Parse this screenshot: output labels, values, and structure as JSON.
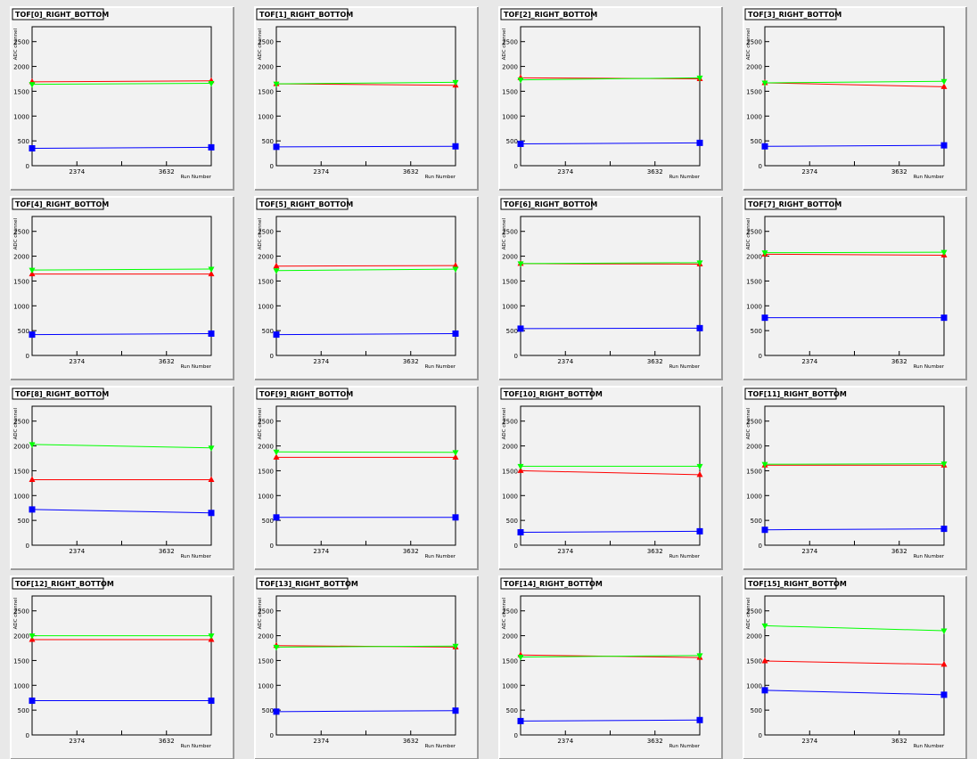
{
  "style": {
    "page_bg": "#e8e8e8",
    "pad_bg": "#f2f2f2",
    "frame_color": "#000000",
    "series_colors": {
      "blue": "#0000ff",
      "red": "#ff0000",
      "green": "#00ff00"
    }
  },
  "chart_data": [
    {
      "type": "line",
      "title": "TOF[0]_RIGHT_BOTTOM",
      "ylabel": "ADC channel",
      "xlabel": "Run Number",
      "x_tick_labels": [
        "2374",
        "3632"
      ],
      "ylim": [
        0,
        2800
      ],
      "y_tick_labels": [
        "0",
        "500",
        "1000",
        "1500",
        "2000",
        "2500"
      ],
      "series": [
        {
          "color": "blue",
          "marker": "square",
          "values": [
            350,
            370
          ]
        },
        {
          "color": "red",
          "marker": "triangle-up",
          "values": [
            1690,
            1710
          ]
        },
        {
          "color": "green",
          "marker": "triangle-down",
          "values": [
            1640,
            1660
          ]
        }
      ]
    },
    {
      "type": "line",
      "title": "TOF[1]_RIGHT_BOTTOM",
      "ylabel": "ADC channel",
      "xlabel": "Run Number",
      "x_tick_labels": [
        "2374",
        "3632"
      ],
      "ylim": [
        0,
        2800
      ],
      "y_tick_labels": [
        "0",
        "500",
        "1000",
        "1500",
        "2000",
        "2500"
      ],
      "series": [
        {
          "color": "blue",
          "marker": "square",
          "values": [
            380,
            390
          ]
        },
        {
          "color": "red",
          "marker": "triangle-up",
          "values": [
            1650,
            1620
          ]
        },
        {
          "color": "green",
          "marker": "triangle-down",
          "values": [
            1650,
            1680
          ]
        }
      ]
    },
    {
      "type": "line",
      "title": "TOF[2]_RIGHT_BOTTOM",
      "ylabel": "ADC channel",
      "xlabel": "Run Number",
      "x_tick_labels": [
        "2374",
        "3632"
      ],
      "ylim": [
        0,
        2800
      ],
      "y_tick_labels": [
        "0",
        "500",
        "1000",
        "1500",
        "2000",
        "2500"
      ],
      "series": [
        {
          "color": "blue",
          "marker": "square",
          "values": [
            440,
            460
          ]
        },
        {
          "color": "red",
          "marker": "triangle-up",
          "values": [
            1770,
            1750
          ]
        },
        {
          "color": "green",
          "marker": "triangle-down",
          "values": [
            1730,
            1770
          ]
        }
      ]
    },
    {
      "type": "line",
      "title": "TOF[3]_RIGHT_BOTTOM",
      "ylabel": "ADC channel",
      "xlabel": "Run Number",
      "x_tick_labels": [
        "2374",
        "3632"
      ],
      "ylim": [
        0,
        2800
      ],
      "y_tick_labels": [
        "0",
        "500",
        "1000",
        "1500",
        "2000",
        "2500"
      ],
      "series": [
        {
          "color": "blue",
          "marker": "square",
          "values": [
            390,
            410
          ]
        },
        {
          "color": "red",
          "marker": "triangle-up",
          "values": [
            1670,
            1590
          ]
        },
        {
          "color": "green",
          "marker": "triangle-down",
          "values": [
            1670,
            1700
          ]
        }
      ]
    },
    {
      "type": "line",
      "title": "TOF[4]_RIGHT_BOTTOM",
      "ylabel": "ADC channel",
      "xlabel": "Run Number",
      "x_tick_labels": [
        "2374",
        "3632"
      ],
      "ylim": [
        0,
        2800
      ],
      "y_tick_labels": [
        "0",
        "500",
        "1000",
        "1500",
        "2000",
        "2500"
      ],
      "series": [
        {
          "color": "blue",
          "marker": "square",
          "values": [
            420,
            440
          ]
        },
        {
          "color": "red",
          "marker": "triangle-up",
          "values": [
            1640,
            1640
          ]
        },
        {
          "color": "green",
          "marker": "triangle-down",
          "values": [
            1720,
            1740
          ]
        }
      ]
    },
    {
      "type": "line",
      "title": "TOF[5]_RIGHT_BOTTOM",
      "ylabel": "ADC channel",
      "xlabel": "Run Number",
      "x_tick_labels": [
        "2374",
        "3632"
      ],
      "ylim": [
        0,
        2800
      ],
      "y_tick_labels": [
        "0",
        "500",
        "1000",
        "1500",
        "2000",
        "2500"
      ],
      "series": [
        {
          "color": "blue",
          "marker": "square",
          "values": [
            420,
            440
          ]
        },
        {
          "color": "red",
          "marker": "triangle-up",
          "values": [
            1800,
            1810
          ]
        },
        {
          "color": "green",
          "marker": "triangle-down",
          "values": [
            1710,
            1740
          ]
        }
      ]
    },
    {
      "type": "line",
      "title": "TOF[6]_RIGHT_BOTTOM",
      "ylabel": "ADC channel",
      "xlabel": "Run Number",
      "x_tick_labels": [
        "2374",
        "3632"
      ],
      "ylim": [
        0,
        2800
      ],
      "y_tick_labels": [
        "0",
        "500",
        "1000",
        "1500",
        "2000",
        "2500"
      ],
      "series": [
        {
          "color": "blue",
          "marker": "square",
          "values": [
            540,
            550
          ]
        },
        {
          "color": "red",
          "marker": "triangle-up",
          "values": [
            1850,
            1840
          ]
        },
        {
          "color": "green",
          "marker": "triangle-down",
          "values": [
            1850,
            1870
          ]
        }
      ]
    },
    {
      "type": "line",
      "title": "TOF[7]_RIGHT_BOTTOM",
      "ylabel": "ADC channel",
      "xlabel": "Run Number",
      "x_tick_labels": [
        "2374",
        "3632"
      ],
      "ylim": [
        0,
        2800
      ],
      "y_tick_labels": [
        "0",
        "500",
        "1000",
        "1500",
        "2000",
        "2500"
      ],
      "series": [
        {
          "color": "blue",
          "marker": "square",
          "values": [
            760,
            760
          ]
        },
        {
          "color": "red",
          "marker": "triangle-up",
          "values": [
            2040,
            2020
          ]
        },
        {
          "color": "green",
          "marker": "triangle-down",
          "values": [
            2070,
            2080
          ]
        }
      ]
    },
    {
      "type": "line",
      "title": "TOF[8]_RIGHT_BOTTOM",
      "ylabel": "ADC channel",
      "xlabel": "Run Number",
      "x_tick_labels": [
        "2374",
        "3632"
      ],
      "ylim": [
        0,
        2800
      ],
      "y_tick_labels": [
        "0",
        "500",
        "1000",
        "1500",
        "2000",
        "2500"
      ],
      "series": [
        {
          "color": "blue",
          "marker": "square",
          "values": [
            720,
            650
          ]
        },
        {
          "color": "red",
          "marker": "triangle-up",
          "values": [
            1320,
            1320
          ]
        },
        {
          "color": "green",
          "marker": "triangle-down",
          "values": [
            2030,
            1960
          ]
        }
      ]
    },
    {
      "type": "line",
      "title": "TOF[9]_RIGHT_BOTTOM",
      "ylabel": "ADC channel",
      "xlabel": "Run Number",
      "x_tick_labels": [
        "2374",
        "3632"
      ],
      "ylim": [
        0,
        2800
      ],
      "y_tick_labels": [
        "0",
        "500",
        "1000",
        "1500",
        "2000",
        "2500"
      ],
      "series": [
        {
          "color": "blue",
          "marker": "square",
          "values": [
            560,
            560
          ]
        },
        {
          "color": "red",
          "marker": "triangle-up",
          "values": [
            1770,
            1770
          ]
        },
        {
          "color": "green",
          "marker": "triangle-down",
          "values": [
            1880,
            1870
          ]
        }
      ]
    },
    {
      "type": "line",
      "title": "TOF[10]_RIGHT_BOTTOM",
      "ylabel": "ADC channel",
      "xlabel": "Run Number",
      "x_tick_labels": [
        "2374",
        "3632"
      ],
      "ylim": [
        0,
        2800
      ],
      "y_tick_labels": [
        "0",
        "500",
        "1000",
        "1500",
        "2000",
        "2500"
      ],
      "series": [
        {
          "color": "blue",
          "marker": "square",
          "values": [
            260,
            280
          ]
        },
        {
          "color": "red",
          "marker": "triangle-up",
          "values": [
            1500,
            1420
          ]
        },
        {
          "color": "green",
          "marker": "triangle-down",
          "values": [
            1590,
            1590
          ]
        }
      ]
    },
    {
      "type": "line",
      "title": "TOF[11]_RIGHT_BOTTOM",
      "ylabel": "ADC channel",
      "xlabel": "Run Number",
      "x_tick_labels": [
        "2374",
        "3632"
      ],
      "ylim": [
        0,
        2800
      ],
      "y_tick_labels": [
        "0",
        "500",
        "1000",
        "1500",
        "2000",
        "2500"
      ],
      "series": [
        {
          "color": "blue",
          "marker": "square",
          "values": [
            310,
            330
          ]
        },
        {
          "color": "red",
          "marker": "triangle-up",
          "values": [
            1610,
            1610
          ]
        },
        {
          "color": "green",
          "marker": "triangle-down",
          "values": [
            1630,
            1640
          ]
        }
      ]
    },
    {
      "type": "line",
      "title": "TOF[12]_RIGHT_BOTTOM",
      "ylabel": "ADC channel",
      "xlabel": "Run Number",
      "x_tick_labels": [
        "2374",
        "3632"
      ],
      "ylim": [
        0,
        2800
      ],
      "y_tick_labels": [
        "0",
        "500",
        "1000",
        "1500",
        "2000",
        "2500"
      ],
      "series": [
        {
          "color": "blue",
          "marker": "square",
          "values": [
            690,
            690
          ]
        },
        {
          "color": "red",
          "marker": "triangle-up",
          "values": [
            1920,
            1920
          ]
        },
        {
          "color": "green",
          "marker": "triangle-down",
          "values": [
            2000,
            2000
          ]
        }
      ]
    },
    {
      "type": "line",
      "title": "TOF[13]_RIGHT_BOTTOM",
      "ylabel": "ADC channel",
      "xlabel": "Run Number",
      "x_tick_labels": [
        "2374",
        "3632"
      ],
      "ylim": [
        0,
        2800
      ],
      "y_tick_labels": [
        "0",
        "500",
        "1000",
        "1500",
        "2000",
        "2500"
      ],
      "series": [
        {
          "color": "blue",
          "marker": "square",
          "values": [
            470,
            490
          ]
        },
        {
          "color": "red",
          "marker": "triangle-up",
          "values": [
            1800,
            1770
          ]
        },
        {
          "color": "green",
          "marker": "triangle-down",
          "values": [
            1770,
            1790
          ]
        }
      ]
    },
    {
      "type": "line",
      "title": "TOF[14]_RIGHT_BOTTOM",
      "ylabel": "ADC channel",
      "xlabel": "Run Number",
      "x_tick_labels": [
        "2374",
        "3632"
      ],
      "ylim": [
        0,
        2800
      ],
      "y_tick_labels": [
        "0",
        "500",
        "1000",
        "1500",
        "2000",
        "2500"
      ],
      "series": [
        {
          "color": "blue",
          "marker": "square",
          "values": [
            280,
            300
          ]
        },
        {
          "color": "red",
          "marker": "triangle-up",
          "values": [
            1610,
            1560
          ]
        },
        {
          "color": "green",
          "marker": "triangle-down",
          "values": [
            1570,
            1600
          ]
        }
      ]
    },
    {
      "type": "line",
      "title": "TOF[15]_RIGHT_BOTTOM",
      "ylabel": "ADC channel",
      "xlabel": "Run Number",
      "x_tick_labels": [
        "2374",
        "3632"
      ],
      "ylim": [
        0,
        2800
      ],
      "y_tick_labels": [
        "0",
        "500",
        "1000",
        "1500",
        "2000",
        "2500"
      ],
      "series": [
        {
          "color": "blue",
          "marker": "square",
          "values": [
            900,
            810
          ]
        },
        {
          "color": "red",
          "marker": "triangle-up",
          "values": [
            1490,
            1420
          ]
        },
        {
          "color": "green",
          "marker": "triangle-down",
          "values": [
            2200,
            2100
          ]
        }
      ]
    }
  ]
}
